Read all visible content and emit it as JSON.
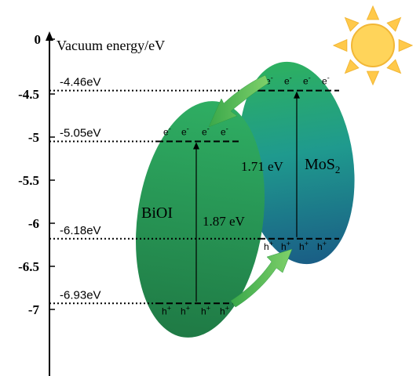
{
  "axis": {
    "title": "Vacuum energy/eV",
    "ticks": [
      {
        "value": 0,
        "label": "0"
      },
      {
        "value": -4.5,
        "label": "-4.5"
      },
      {
        "value": -5,
        "label": "-5"
      },
      {
        "value": -5.5,
        "label": "-5.5"
      },
      {
        "value": -6,
        "label": "-6"
      },
      {
        "value": -6.5,
        "label": "-6.5"
      },
      {
        "value": -7,
        "label": "-7"
      }
    ]
  },
  "levels": [
    {
      "value": -4.46,
      "label": "-4.46eV"
    },
    {
      "value": -5.05,
      "label": "-5.05eV"
    },
    {
      "value": -6.18,
      "label": "-6.18eV"
    },
    {
      "value": -6.93,
      "label": "-6.93eV"
    }
  ],
  "bioi": {
    "name": "BiOI",
    "gap_label": "1.87 eV",
    "cb": -5.05,
    "vb": -6.93,
    "electron": "e-",
    "hole": "h+",
    "color_top": "#2fae63",
    "color_bottom": "#1f7a45"
  },
  "mos2": {
    "name_main": "MoS",
    "name_sub": "2",
    "gap_label": "1.71 eV",
    "cb": -4.46,
    "vb": -6.18,
    "electron": "e-",
    "hole": "h+",
    "color_top": "#2db060",
    "color_mid": "#1f9a8e",
    "color_bottom": "#1a5e86"
  },
  "colors": {
    "axis": "#000000",
    "sun_body": "#ffd45a",
    "sun_ray": "#ffc94a",
    "arrow": "#5cc452"
  },
  "icons": {
    "sun": "sun-icon"
  }
}
